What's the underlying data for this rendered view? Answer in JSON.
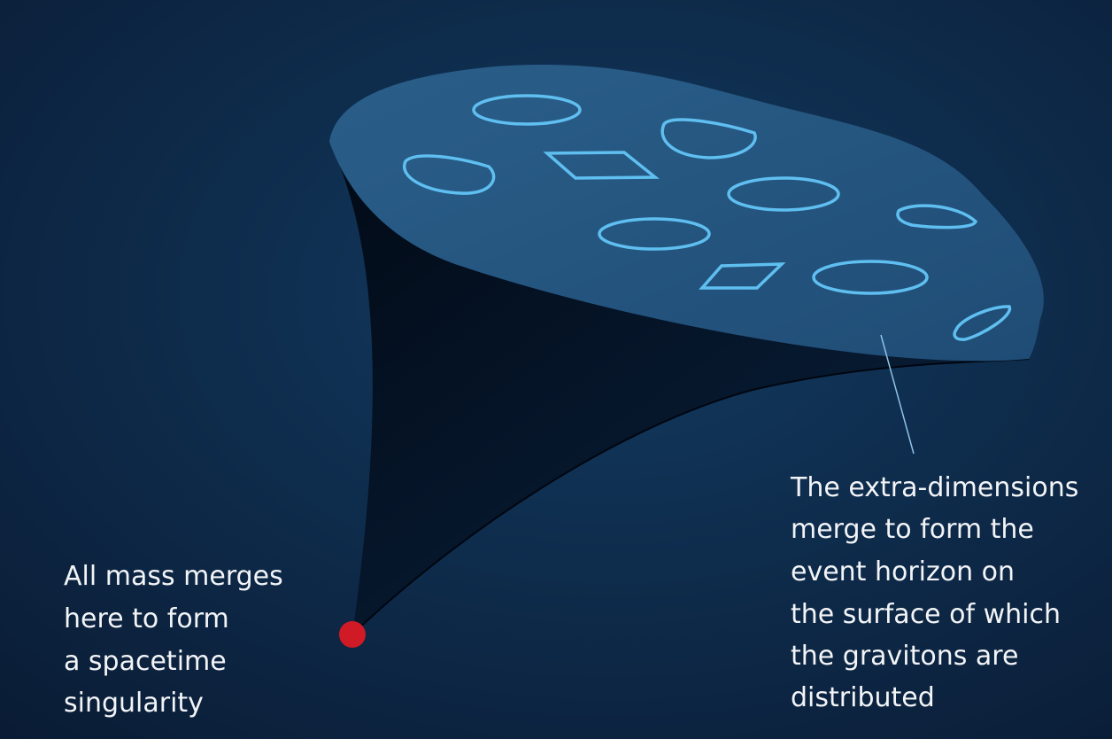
{
  "annotations": {
    "singularity": {
      "lines": [
        "All mass merges",
        "here to form",
        "a spacetime",
        "singularity"
      ]
    },
    "horizon": {
      "lines": [
        "The extra-dimensions",
        "merge to form the",
        "event horizon on",
        "the surface of which",
        "the gravitons are",
        "distributed"
      ]
    }
  }
}
